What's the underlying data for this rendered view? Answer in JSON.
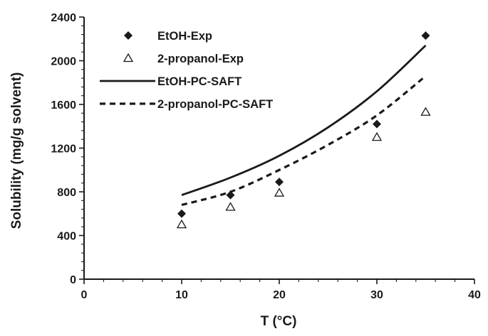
{
  "chart_data": {
    "type": "scatter",
    "title": "",
    "xlabel": "T (°C)",
    "ylabel": "Solubility (mg/g solvent)",
    "xlim": [
      0,
      40
    ],
    "ylim": [
      0,
      2400
    ],
    "xticks": [
      0,
      10,
      20,
      30,
      40
    ],
    "yticks": [
      0,
      400,
      800,
      1200,
      1600,
      2000,
      2400
    ],
    "grid": false,
    "legend_position": "top-left",
    "series": [
      {
        "name": "EtOH-Exp",
        "kind": "marker",
        "marker": "diamond",
        "x": [
          10,
          15,
          20,
          30,
          35
        ],
        "y": [
          600,
          770,
          890,
          1420,
          2230
        ]
      },
      {
        "name": "2-propanol-Exp",
        "kind": "marker",
        "marker": "triangle-open",
        "x": [
          10,
          15,
          20,
          30,
          35
        ],
        "y": [
          500,
          660,
          790,
          1300,
          1530
        ]
      },
      {
        "name": "EtOH-PC-SAFT",
        "kind": "line",
        "dash": "solid",
        "x": [
          10,
          15,
          20,
          25,
          30,
          35
        ],
        "y": [
          770,
          930,
          1130,
          1390,
          1720,
          2140
        ]
      },
      {
        "name": "2-propanol-PC-SAFT",
        "kind": "line",
        "dash": "dashed",
        "x": [
          10,
          15,
          20,
          25,
          30,
          35
        ],
        "y": [
          680,
          800,
          1000,
          1230,
          1500,
          1860
        ]
      }
    ]
  }
}
